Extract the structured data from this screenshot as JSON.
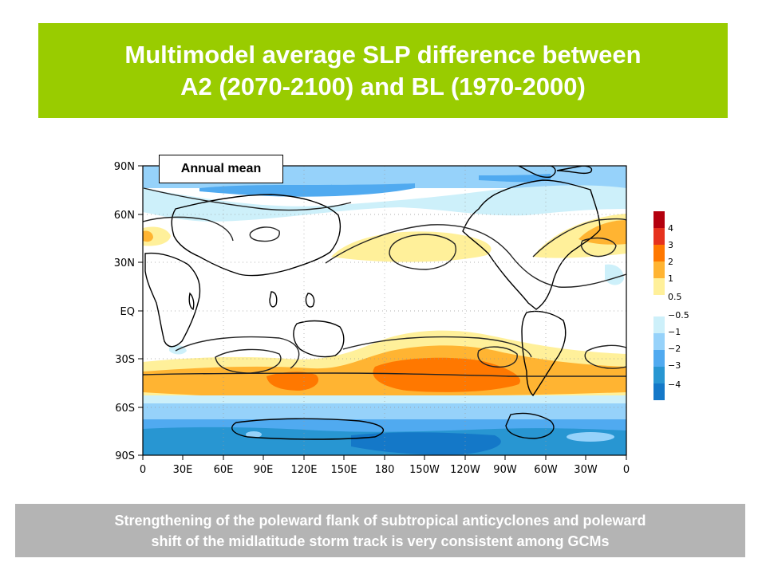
{
  "title": {
    "line1": "Multimodel average SLP difference between",
    "line2": "A2 (2070-2100) and BL (1970-2000)"
  },
  "map": {
    "panel_label": "Annual mean",
    "lat_ticks": [
      "90N",
      "60N",
      "30N",
      "EQ",
      "30S",
      "60S",
      "90S"
    ],
    "lon_ticks": [
      "0",
      "30E",
      "60E",
      "90E",
      "120E",
      "150E",
      "180",
      "150W",
      "120W",
      "90W",
      "60W",
      "30W",
      "0"
    ]
  },
  "colorbar": {
    "labels": [
      "4",
      "3",
      "2",
      "1",
      "0.5",
      "−0.5",
      "−1",
      "−2",
      "−3",
      "−4"
    ],
    "colors": {
      "pos4": "#b4000e",
      "pos3": "#e6321e",
      "pos2": "#ff7800",
      "pos1": "#ffb432",
      "pos05": "#fff09a",
      "neg05": "#cdf0fa",
      "neg1": "#96d2fa",
      "neg2": "#50aaf0",
      "neg3": "#2896d2",
      "neg4": "#1478c8"
    }
  },
  "caption": {
    "line1": "Strengthening of the poleward flank of subtropical anticyclones and poleward",
    "line2": "shift of the midlatitude storm track is very consistent among GCMs"
  }
}
